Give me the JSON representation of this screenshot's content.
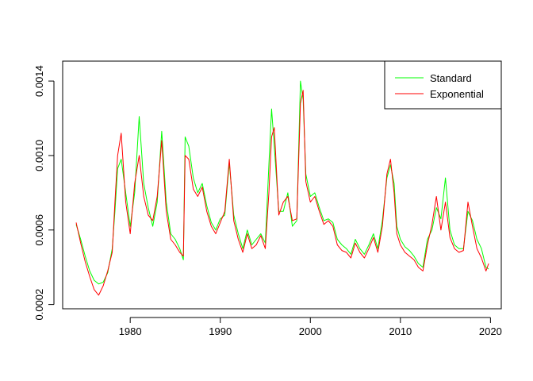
{
  "chart_data": {
    "type": "line",
    "title": "",
    "xlabel": "",
    "ylabel": "",
    "xlim": [
      1972.5,
      2021.2
    ],
    "ylim": [
      0.000177,
      0.001507
    ],
    "x_ticks": [
      1980,
      1990,
      2000,
      2010,
      2020
    ],
    "x_tick_labels": [
      "1980",
      "1990",
      "2000",
      "2010",
      "2020"
    ],
    "y_ticks": [
      0.0002,
      0.0006,
      0.001,
      0.0014
    ],
    "y_tick_labels": [
      "0.0002",
      "0.0006",
      "0.0010",
      "0.0014"
    ],
    "grid": false,
    "legend": {
      "position": "top-right"
    },
    "series": [
      {
        "name": "Standard",
        "color": "#00ff00",
        "x": [
          1974.0,
          1974.5,
          1975.0,
          1975.5,
          1976.0,
          1976.5,
          1977.0,
          1977.5,
          1978.0,
          1978.3,
          1978.6,
          1979.0,
          1979.5,
          1980.0,
          1980.5,
          1981.0,
          1981.5,
          1982.0,
          1982.5,
          1983.0,
          1983.5,
          1984.0,
          1984.5,
          1985.0,
          1985.5,
          1985.9,
          1986.1,
          1986.5,
          1987.0,
          1987.5,
          1988.0,
          1988.5,
          1989.0,
          1989.5,
          1990.0,
          1990.5,
          1991.0,
          1991.5,
          1992.0,
          1992.5,
          1993.0,
          1993.5,
          1994.0,
          1994.5,
          1995.0,
          1995.4,
          1995.7,
          1996.0,
          1996.5,
          1997.0,
          1997.5,
          1998.0,
          1998.5,
          1998.9,
          1999.2,
          1999.5,
          2000.0,
          2000.5,
          2001.0,
          2001.5,
          2002.0,
          2002.5,
          2003.0,
          2003.5,
          2004.0,
          2004.5,
          2005.0,
          2005.5,
          2006.0,
          2006.5,
          2007.0,
          2007.5,
          2008.0,
          2008.5,
          2008.9,
          2009.3,
          2009.6,
          2010.0,
          2010.5,
          2011.0,
          2011.5,
          2012.0,
          2012.5,
          2013.0,
          2013.5,
          2014.0,
          2014.5,
          2015.0,
          2015.5,
          2016.0,
          2016.5,
          2017.0,
          2017.5,
          2018.0,
          2018.5,
          2019.0,
          2019.5,
          2019.8
        ],
        "y": [
          0.00063,
          0.00055,
          0.00046,
          0.00038,
          0.00033,
          0.00031,
          0.00032,
          0.00037,
          0.0005,
          0.0007,
          0.00093,
          0.00098,
          0.0008,
          0.00062,
          0.0008,
          0.00121,
          0.00085,
          0.00072,
          0.00062,
          0.00075,
          0.00113,
          0.00075,
          0.00058,
          0.00055,
          0.0005,
          0.00044,
          0.0011,
          0.00105,
          0.00088,
          0.0008,
          0.00085,
          0.00073,
          0.00064,
          0.0006,
          0.00066,
          0.00068,
          0.00096,
          0.00068,
          0.00058,
          0.0005,
          0.0006,
          0.00052,
          0.00055,
          0.00058,
          0.00053,
          0.00095,
          0.00125,
          0.00105,
          0.0007,
          0.0007,
          0.0008,
          0.00062,
          0.00065,
          0.0014,
          0.0013,
          0.0009,
          0.00078,
          0.0008,
          0.00072,
          0.00065,
          0.00066,
          0.00064,
          0.00055,
          0.00052,
          0.0005,
          0.00047,
          0.00055,
          0.0005,
          0.00047,
          0.00052,
          0.00058,
          0.0005,
          0.00065,
          0.00088,
          0.00095,
          0.00085,
          0.00062,
          0.00055,
          0.00051,
          0.00049,
          0.00046,
          0.00042,
          0.0004,
          0.00055,
          0.0006,
          0.00072,
          0.00066,
          0.00088,
          0.0006,
          0.00052,
          0.0005,
          0.0005,
          0.0007,
          0.00065,
          0.00055,
          0.0005,
          0.0004,
          0.00039
        ]
      },
      {
        "name": "Exponential",
        "color": "#ff0000",
        "x": [
          1974.0,
          1974.5,
          1975.0,
          1975.5,
          1976.0,
          1976.5,
          1977.0,
          1977.5,
          1978.0,
          1978.3,
          1978.6,
          1979.0,
          1979.5,
          1980.0,
          1980.5,
          1981.0,
          1981.5,
          1982.0,
          1982.5,
          1983.0,
          1983.5,
          1984.0,
          1984.5,
          1985.0,
          1985.5,
          1985.9,
          1986.1,
          1986.5,
          1987.0,
          1987.5,
          1988.0,
          1988.5,
          1989.0,
          1989.5,
          1990.0,
          1990.5,
          1991.0,
          1991.5,
          1992.0,
          1992.5,
          1993.0,
          1993.5,
          1994.0,
          1994.5,
          1995.0,
          1995.4,
          1995.7,
          1996.0,
          1996.5,
          1997.0,
          1997.5,
          1998.0,
          1998.5,
          1998.9,
          1999.2,
          1999.5,
          2000.0,
          2000.5,
          2001.0,
          2001.5,
          2002.0,
          2002.5,
          2003.0,
          2003.5,
          2004.0,
          2004.5,
          2005.0,
          2005.5,
          2006.0,
          2006.5,
          2007.0,
          2007.5,
          2008.0,
          2008.5,
          2008.9,
          2009.3,
          2009.6,
          2010.0,
          2010.5,
          2011.0,
          2011.5,
          2012.0,
          2012.5,
          2013.0,
          2013.5,
          2014.0,
          2014.5,
          2015.0,
          2015.5,
          2016.0,
          2016.5,
          2017.0,
          2017.5,
          2018.0,
          2018.5,
          2019.0,
          2019.5,
          2019.8
        ],
        "y": [
          0.00064,
          0.00053,
          0.00043,
          0.00035,
          0.00028,
          0.00025,
          0.0003,
          0.00038,
          0.00048,
          0.00075,
          0.001,
          0.00112,
          0.00075,
          0.00058,
          0.00085,
          0.001,
          0.00078,
          0.00068,
          0.00065,
          0.00078,
          0.00108,
          0.0007,
          0.00055,
          0.00052,
          0.00048,
          0.00046,
          0.001,
          0.00098,
          0.00082,
          0.00078,
          0.00083,
          0.0007,
          0.00062,
          0.00058,
          0.00064,
          0.0007,
          0.00098,
          0.00065,
          0.00055,
          0.00048,
          0.00058,
          0.0005,
          0.00052,
          0.00057,
          0.0005,
          0.0008,
          0.0011,
          0.00115,
          0.00068,
          0.00075,
          0.00078,
          0.00065,
          0.00066,
          0.00128,
          0.00135,
          0.00086,
          0.00075,
          0.00078,
          0.0007,
          0.00063,
          0.00065,
          0.00062,
          0.00052,
          0.00049,
          0.00048,
          0.00045,
          0.00053,
          0.00048,
          0.00045,
          0.0005,
          0.00056,
          0.00048,
          0.00062,
          0.0009,
          0.00098,
          0.0008,
          0.00058,
          0.00052,
          0.00048,
          0.00046,
          0.00044,
          0.0004,
          0.00038,
          0.00052,
          0.00063,
          0.00078,
          0.0006,
          0.00075,
          0.00056,
          0.0005,
          0.00048,
          0.00049,
          0.00075,
          0.00062,
          0.0005,
          0.00045,
          0.00038,
          0.00042
        ]
      }
    ]
  }
}
